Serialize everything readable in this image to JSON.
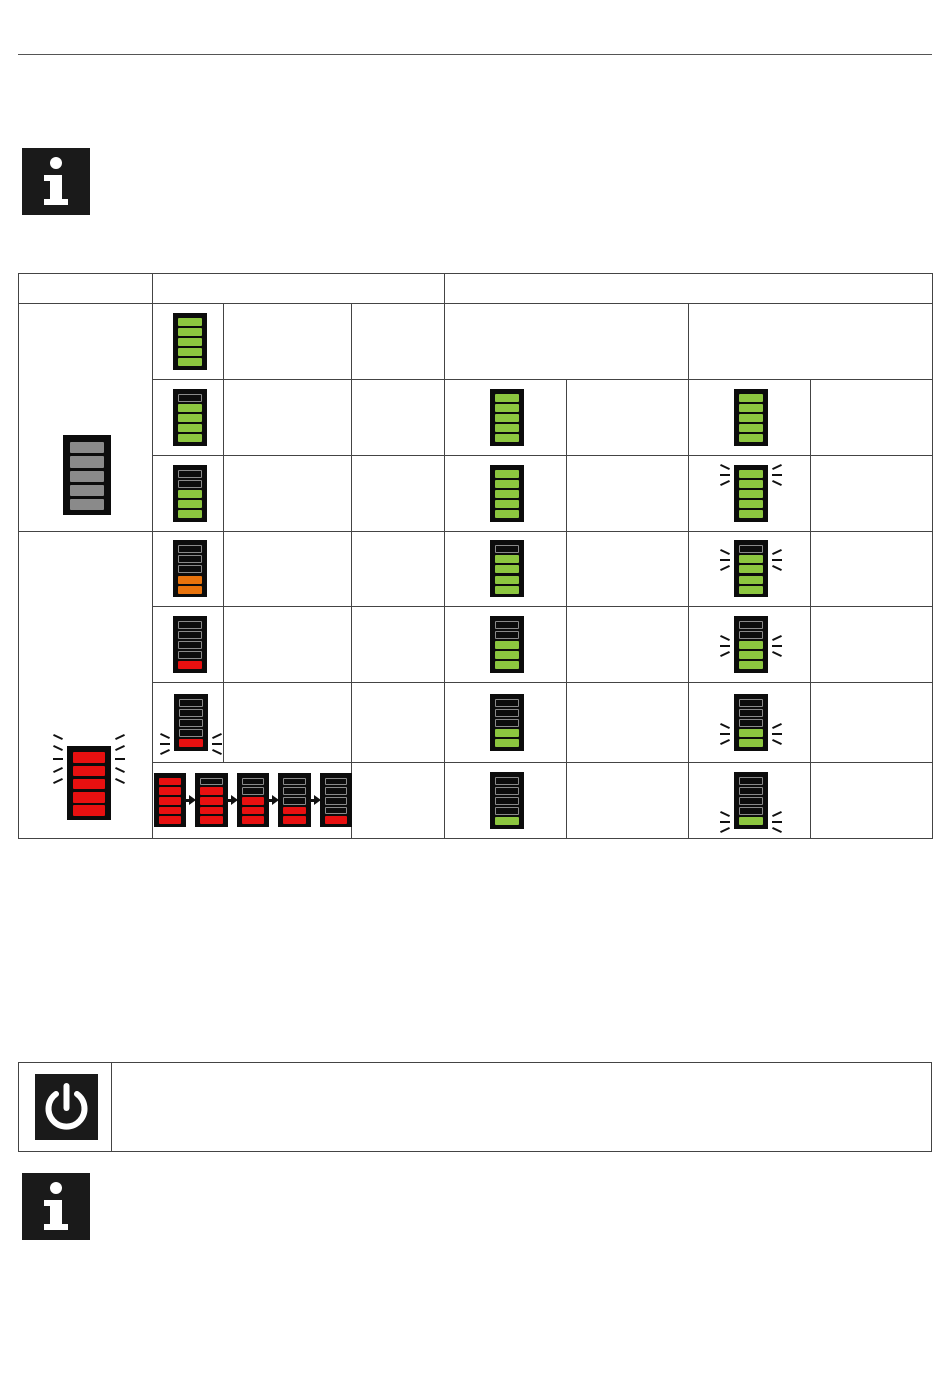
{
  "colors": {
    "green": "#8cc63f",
    "orange": "#e8730c",
    "red": "#e81010",
    "gray": "#8a8a8a",
    "frame": "#0c0c0c"
  },
  "icons": {
    "info_top": "info-icon",
    "power": "power-icon",
    "info_bottom": "info-icon"
  },
  "table": {
    "left_icons": [
      {
        "level": 5,
        "color": "gray",
        "flash": false
      },
      {
        "level": 5,
        "color": "red",
        "flash": true
      }
    ],
    "rows": [
      {
        "a": {
          "level": 5,
          "color": "green"
        },
        "b": null,
        "c": null
      },
      {
        "a": {
          "level": 4,
          "color": "green"
        },
        "b": {
          "level": 5,
          "color": "green"
        },
        "c": {
          "level": 5,
          "color": "green",
          "flash": false
        }
      },
      {
        "a": {
          "level": 3,
          "color": "green"
        },
        "b": {
          "level": 5,
          "color": "green"
        },
        "c": {
          "level": 5,
          "color": "green",
          "flash": true
        }
      },
      {
        "a": {
          "level": 2,
          "color": "orange"
        },
        "b": {
          "level": 4,
          "color": "green"
        },
        "c": {
          "level": 4,
          "color": "green",
          "flash": true
        }
      },
      {
        "a": {
          "level": 1,
          "color": "red"
        },
        "b": {
          "level": 3,
          "color": "green"
        },
        "c": {
          "level": 3,
          "color": "green",
          "flash": true
        }
      },
      {
        "a": {
          "level": 1,
          "color": "red",
          "flash": true
        },
        "b": {
          "level": 2,
          "color": "green"
        },
        "c": {
          "level": 2,
          "color": "green",
          "flash": true
        }
      },
      {
        "sequence": [
          5,
          4,
          3,
          2,
          1
        ],
        "sequence_color": "red",
        "b": {
          "level": 1,
          "color": "green"
        },
        "c": {
          "level": 1,
          "color": "green",
          "flash": true
        }
      }
    ]
  }
}
